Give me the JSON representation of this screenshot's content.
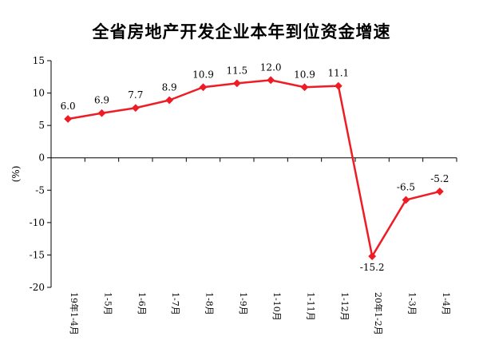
{
  "chart_data": {
    "type": "line",
    "title": "全省房地产开发企业本年到位资金增速",
    "ylabel": "(%)",
    "xlabel": "",
    "ylim": [
      -20,
      15
    ],
    "yticks": [
      15,
      10,
      5,
      0,
      -5,
      -10,
      -15,
      -20
    ],
    "categories": [
      "19年1-4月",
      "1-5月",
      "1-6月",
      "1-7月",
      "1-8月",
      "1-9月",
      "1-10月",
      "1-11月",
      "1-12月",
      "20年1-2月",
      "1-3月",
      "1-4月"
    ],
    "data_labels": [
      "6.0",
      "6.9",
      "7.7",
      "8.9",
      "10.9",
      "11.5",
      "12.0",
      "10.9",
      "11.1",
      "-15.2",
      "-6.5",
      "-5.2"
    ],
    "series": [
      {
        "values": [
          6.0,
          6.9,
          7.7,
          8.9,
          10.9,
          11.5,
          12.0,
          10.9,
          11.1,
          -15.2,
          -6.5,
          -5.2
        ]
      }
    ],
    "grid": false,
    "legend": "none",
    "colors": {
      "line": "#ee1c25",
      "axis": "#000000"
    }
  }
}
